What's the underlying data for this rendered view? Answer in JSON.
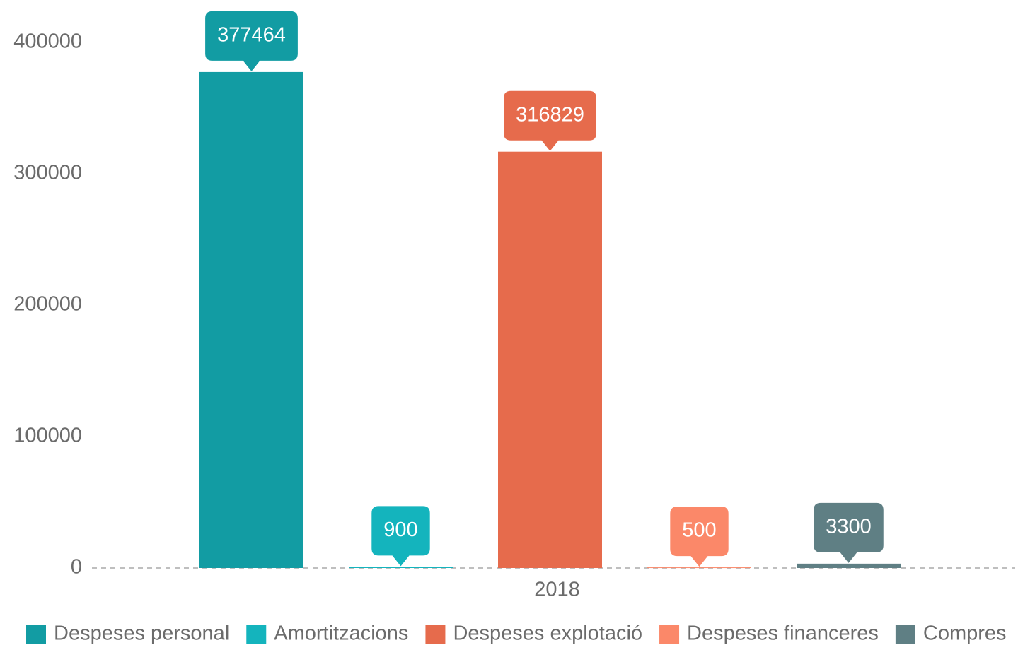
{
  "chart_data": {
    "type": "bar",
    "categories": [
      "2018"
    ],
    "series": [
      {
        "name": "Despeses personal",
        "color": "#129ca3",
        "values": [
          377464
        ]
      },
      {
        "name": "Amortitzacions",
        "color": "#14b4bd",
        "values": [
          900
        ]
      },
      {
        "name": "Despeses explotació",
        "color": "#e66b4c",
        "values": [
          316829
        ]
      },
      {
        "name": "Despeses financeres",
        "color": "#fb8869",
        "values": [
          500
        ]
      },
      {
        "name": "Compres",
        "color": "#5f7f84",
        "values": [
          3300
        ]
      }
    ],
    "ylim": [
      0,
      400000
    ],
    "yticks": [
      0,
      100000,
      200000,
      300000,
      400000
    ],
    "grid": false,
    "legend": "bottom"
  }
}
